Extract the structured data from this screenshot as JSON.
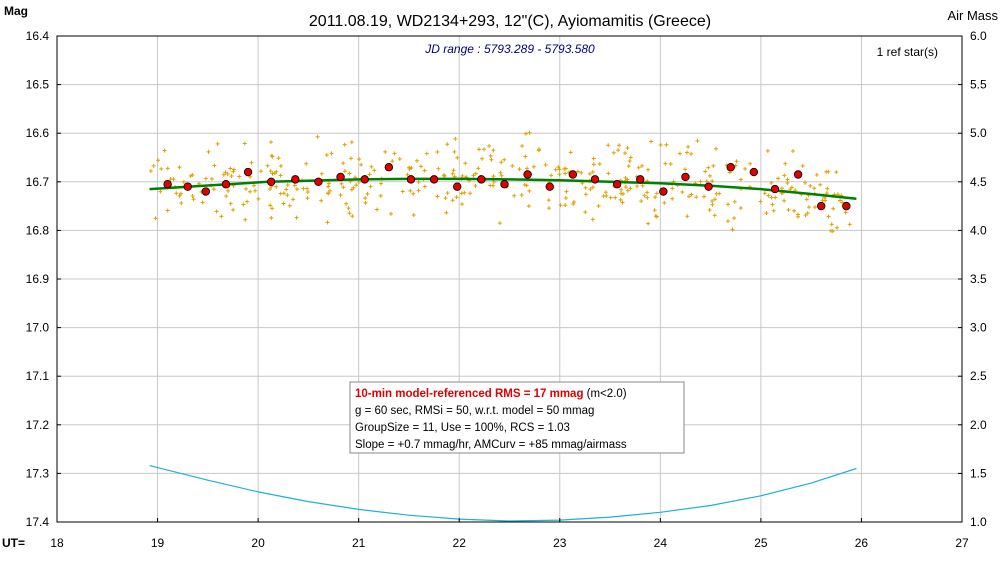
{
  "chart_data": {
    "type": "scatter",
    "title": "2011.08.19, WD2134+293, 12\"(C), Ayiomamitis (Greece)",
    "subtitle": "JD range : 5793.289 - 5793.580",
    "ylabel_left": "Mag",
    "ylabel_right": "Air Mass",
    "xlabel": "UT=",
    "ref_stars": "1 ref star(s)",
    "x_range": [
      18,
      27
    ],
    "y_range": [
      16.4,
      17.4
    ],
    "y_inverted": true,
    "y2_range": [
      1.0,
      6.0
    ],
    "x_ticks": [
      "18",
      "19",
      "20",
      "21",
      "22",
      "23",
      "24",
      "25",
      "26",
      "27"
    ],
    "y_ticks": [
      "16.4",
      "16.5",
      "16.6",
      "16.7",
      "16.8",
      "16.9",
      "17.0",
      "17.1",
      "17.2",
      "17.3",
      "17.4"
    ],
    "y2_ticks": [
      "6.0",
      "5.5",
      "5.0",
      "4.5",
      "4.0",
      "3.5",
      "3.0",
      "2.5",
      "2.0",
      "1.5",
      "1.0"
    ],
    "grid": true,
    "colors": {
      "raw": "#e0a000",
      "binned_fill": "#e00000",
      "model": "#008000",
      "airmass": "#20b0d8",
      "grid": "#c8c8c8",
      "rms_text": "#e00000",
      "subtitle": "#000080"
    },
    "series": [
      {
        "kind": "binned",
        "x": [
          19.1,
          19.3,
          19.48,
          19.68,
          19.9,
          20.13,
          20.37,
          20.6,
          20.82,
          21.06,
          21.3,
          21.52,
          21.75,
          21.98,
          22.22,
          22.45,
          22.68,
          22.9,
          23.13,
          23.35,
          23.57,
          23.8,
          24.03,
          24.25,
          24.48,
          24.7,
          24.93,
          25.14,
          25.37,
          25.6,
          25.85
        ],
        "y": [
          16.705,
          16.71,
          16.72,
          16.705,
          16.68,
          16.7,
          16.695,
          16.7,
          16.69,
          16.695,
          16.67,
          16.695,
          16.695,
          16.71,
          16.695,
          16.705,
          16.685,
          16.71,
          16.685,
          16.695,
          16.705,
          16.695,
          16.72,
          16.69,
          16.71,
          16.67,
          16.68,
          16.715,
          16.685,
          16.75,
          16.75
        ]
      },
      {
        "kind": "model",
        "x": [
          18.92,
          19.3,
          19.7,
          20.1,
          20.5,
          21.0,
          21.5,
          22.0,
          22.5,
          23.0,
          23.5,
          24.0,
          24.5,
          25.0,
          25.5,
          25.95
        ],
        "y": [
          16.715,
          16.71,
          16.705,
          16.7,
          16.698,
          16.695,
          16.694,
          16.694,
          16.695,
          16.697,
          16.7,
          16.703,
          16.708,
          16.715,
          16.725,
          16.735
        ]
      },
      {
        "kind": "airmass",
        "axis": "y2",
        "x": [
          18.92,
          19.5,
          20.0,
          20.5,
          21.0,
          21.5,
          22.0,
          22.5,
          23.0,
          23.5,
          24.0,
          24.5,
          25.0,
          25.5,
          25.95
        ],
        "y": [
          1.58,
          1.43,
          1.31,
          1.21,
          1.13,
          1.07,
          1.03,
          1.01,
          1.02,
          1.05,
          1.1,
          1.17,
          1.27,
          1.4,
          1.55
        ]
      }
    ],
    "info_box": [
      {
        "text": "10-min model-referenced RMS = 17 mmag",
        "suffix": " (m<2.0)",
        "emphasis": true
      },
      {
        "text": "g = 60 sec, RMSi = 50, w.r.t. model = 50 mmag"
      },
      {
        "text": "GroupSize = 11, Use = 100%, RCS = 1.03"
      },
      {
        "text": "Slope = +0.7 mmag/hr, AMCurv = +85 mmag/airmass"
      }
    ]
  }
}
